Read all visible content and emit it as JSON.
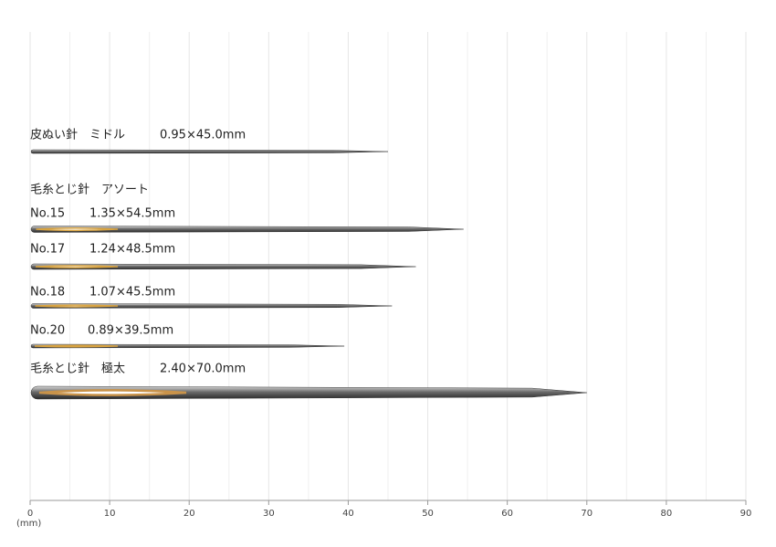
{
  "chart_data": {
    "type": "needle",
    "categories": [
      "皮ぬい針　ミドル",
      "No.15",
      "No.17",
      "No.18",
      "No.20",
      "毛糸とじ針　極太"
    ],
    "values": [
      45,
      54.5,
      48.5,
      45.5,
      39.5,
      70
    ],
    "value_labels": [
      "0.95×45.0mm",
      "1.35×54.5mm",
      "1.24×48.5mm",
      "1.07×45.5mm",
      "0.89×39.5mm",
      "2.40×70.0mm"
    ],
    "eye_colors": [
      "#8a8a8a",
      "#d9a441",
      "#d9a441",
      "#d9a441",
      "#d9a441",
      "#c9934a"
    ],
    "group_label": "毛糸とじ針　アソート",
    "xlabel": "(mm)",
    "xlim": [
      0,
      90
    ],
    "xticks": [
      0,
      10,
      20,
      30,
      40,
      50,
      60,
      70,
      80,
      90
    ],
    "grid": true
  }
}
